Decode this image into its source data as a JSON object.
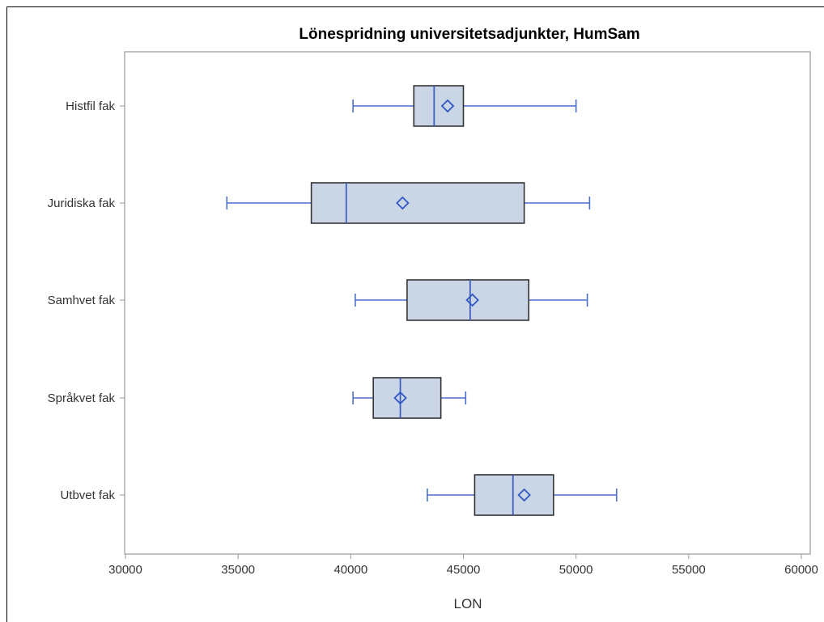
{
  "chart_data": {
    "type": "boxplot",
    "orientation": "horizontal",
    "title": "Lönespridning universitetsadjunkter, HumSam",
    "xlabel": "LON",
    "ylabel": "",
    "xlim": [
      30000,
      60000
    ],
    "x_ticks": [
      "30000",
      "35000",
      "40000",
      "45000",
      "50000",
      "55000",
      "60000"
    ],
    "grid": false,
    "categories": [
      "Histfil fak",
      "Juridiska fak",
      "Samhvet fak",
      "Språkvet fak",
      "Utbvet fak"
    ],
    "boxes": [
      {
        "category": "Histfil fak",
        "whisker_low": 40100,
        "q1": 42800,
        "median": 43700,
        "q3": 45000,
        "whisker_high": 50000,
        "mean": 44300
      },
      {
        "category": "Juridiska fak",
        "whisker_low": 34500,
        "q1": 38250,
        "median": 39800,
        "q3": 47700,
        "whisker_high": 50600,
        "mean": 42300
      },
      {
        "category": "Samhvet fak",
        "whisker_low": 40200,
        "q1": 42500,
        "median": 45300,
        "q3": 47900,
        "whisker_high": 50500,
        "mean": 45400
      },
      {
        "category": "Språkvet fak",
        "whisker_low": 40100,
        "q1": 41000,
        "median": 42200,
        "q3": 44000,
        "whisker_high": 45100,
        "mean": 42200
      },
      {
        "category": "Utbvet fak",
        "whisker_low": 43400,
        "q1": 45500,
        "median": 47200,
        "q3": 49000,
        "whisker_high": 51800,
        "mean": 47700
      }
    ],
    "colors": {
      "box_fill": "#cad5e6",
      "box_stroke": "#333333",
      "whisker": "#4a6fcf",
      "median": "#3f5fbf",
      "mean_marker": "#2f56c4",
      "plot_border": "#999999"
    }
  }
}
